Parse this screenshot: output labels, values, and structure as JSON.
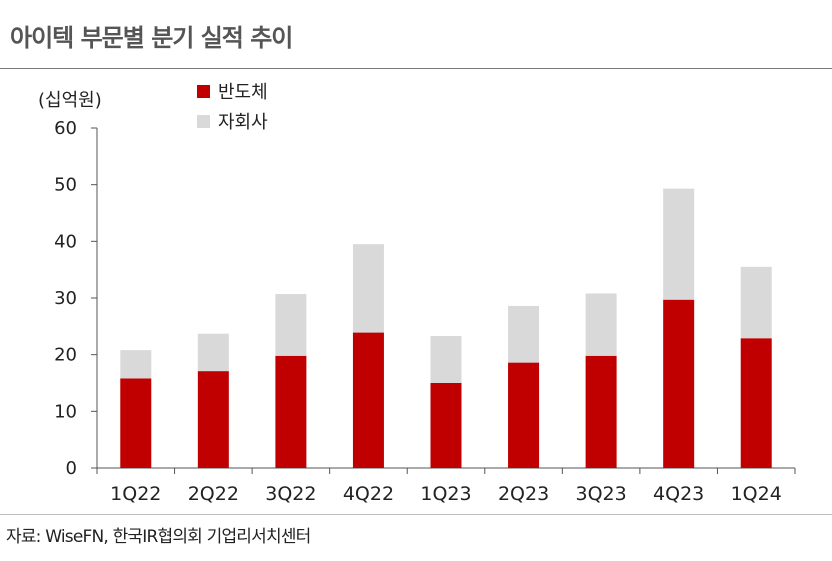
{
  "header": {
    "title": "아이텍 부문별 분기 실적 추이"
  },
  "footer": {
    "source": "자료: WiseFN, 한국IR협의회 기업리서치센터"
  },
  "chart_data": {
    "type": "bar",
    "stacked": true,
    "unit": "(십억원)",
    "categories": [
      "1Q22",
      "2Q22",
      "3Q22",
      "4Q22",
      "1Q23",
      "2Q23",
      "3Q23",
      "4Q23",
      "1Q24"
    ],
    "series": [
      {
        "name": "반도체",
        "color": "#c00000",
        "values": [
          15.8,
          17.1,
          19.8,
          23.9,
          15.0,
          18.6,
          19.8,
          29.7,
          22.9
        ]
      },
      {
        "name": "자회사",
        "color": "#d9d9d9",
        "values": [
          5.0,
          6.6,
          10.9,
          15.6,
          8.3,
          10.0,
          11.0,
          19.6,
          12.6
        ]
      }
    ],
    "ylim": [
      0,
      60
    ],
    "yticks": [
      0,
      10,
      20,
      30,
      40,
      50,
      60
    ],
    "grid": false,
    "legend_position": "top-left"
  }
}
